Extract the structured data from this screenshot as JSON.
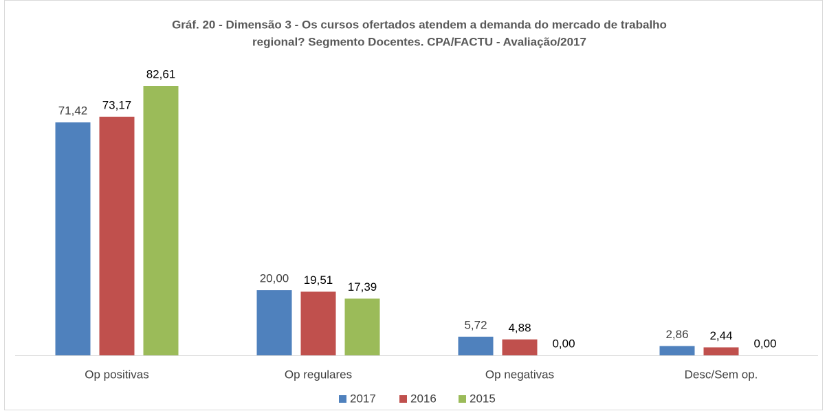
{
  "chart_data": {
    "type": "bar",
    "title": [
      "Gráf. 20 - Dimensão 3 - Os cursos ofertados atendem a demanda do mercado de trabalho",
      "regional?  Segmento Docentes. CPA/FACTU - Avaliação/2017"
    ],
    "categories": [
      "Op positivas",
      "Op regulares",
      "Op negativas",
      "Desc/Sem op."
    ],
    "series": [
      {
        "name": "2017",
        "color": "#4f81bd",
        "values": [
          71.42,
          20.0,
          5.72,
          2.86
        ],
        "value_labels": [
          "71,42",
          "20,00",
          "5,72",
          "2,86"
        ]
      },
      {
        "name": "2016",
        "color": "#c0504d",
        "values": [
          73.17,
          19.51,
          4.88,
          2.44
        ],
        "value_labels": [
          "73,17",
          "19,51",
          "4,88",
          "2,44"
        ]
      },
      {
        "name": "2015",
        "color": "#9bbb59",
        "values": [
          82.61,
          17.39,
          0.0,
          0.0
        ],
        "value_labels": [
          "82,61",
          "17,39",
          "0,00",
          "0,00"
        ]
      }
    ],
    "legend": "bottom"
  }
}
